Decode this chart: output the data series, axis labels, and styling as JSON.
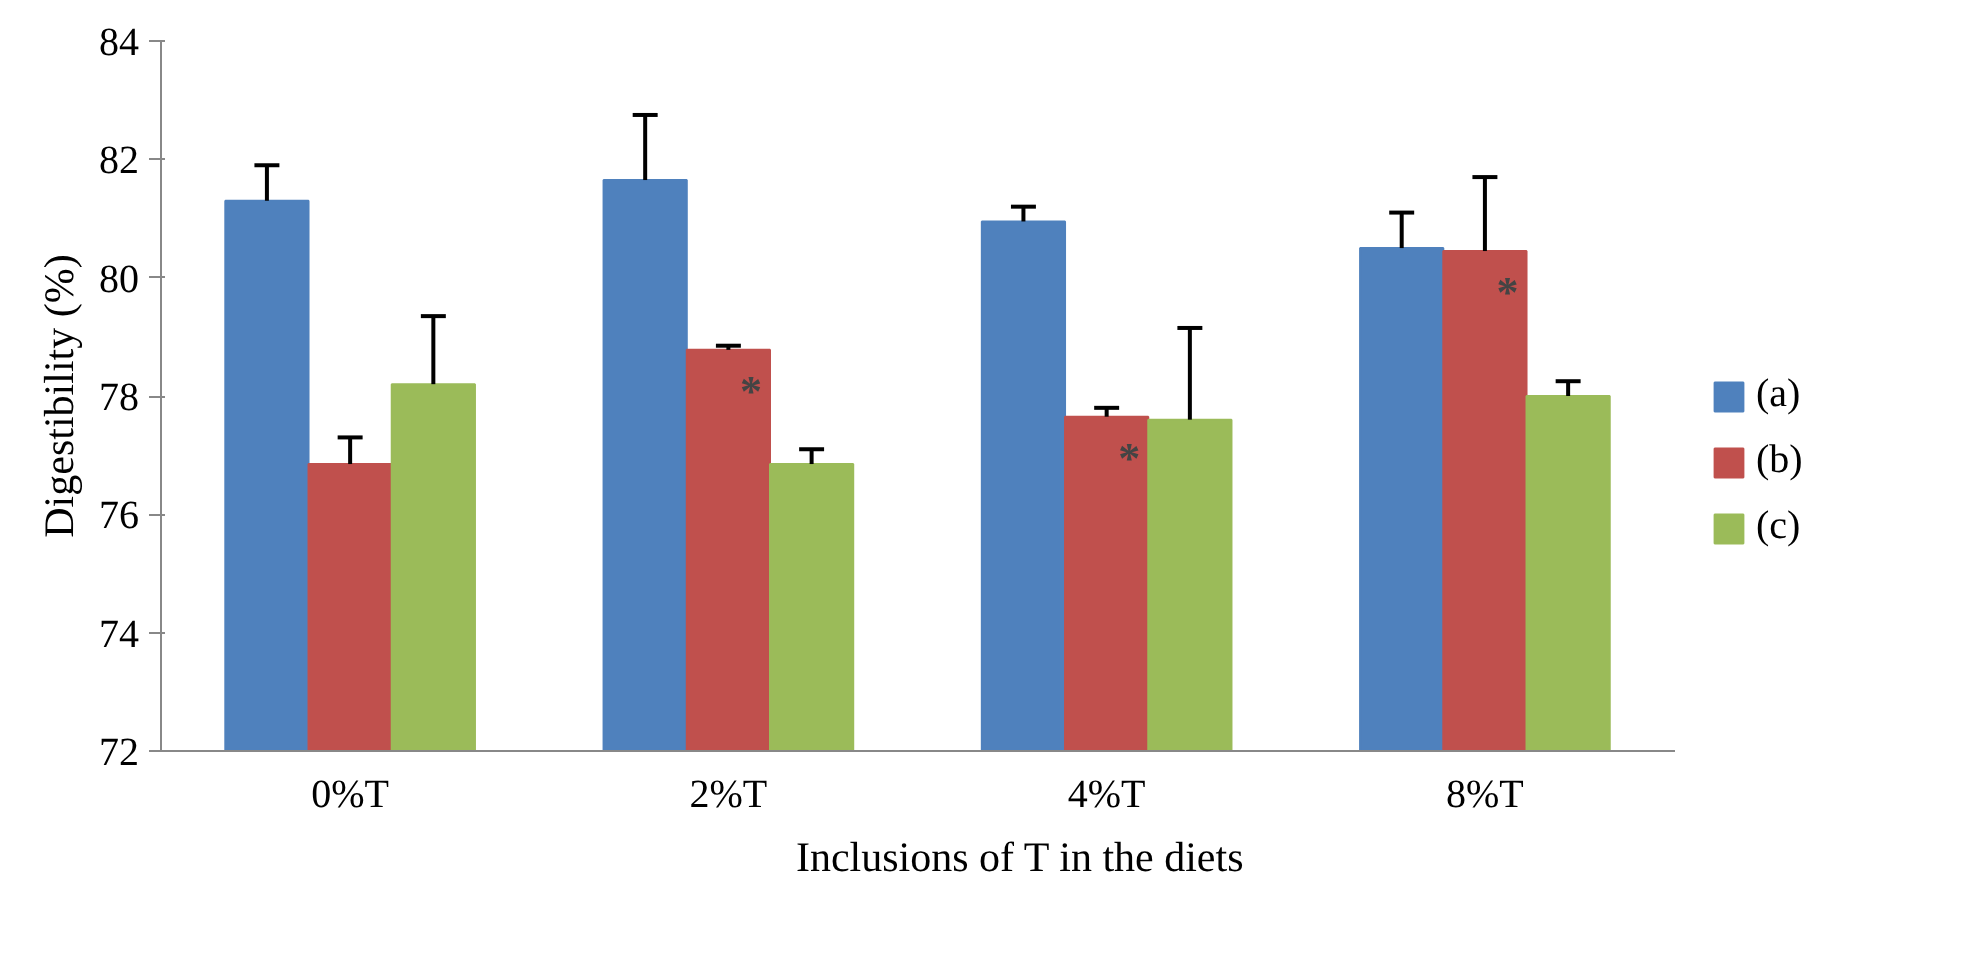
{
  "chart_data": {
    "type": "bar",
    "xlabel": "Inclusions  of  T in the diets",
    "ylabel": "Digestibility (%)",
    "categories": [
      "0%T",
      "2%T",
      "4%T",
      "8%T"
    ],
    "series": [
      {
        "name": "(a)",
        "color": "#4f81bd",
        "values": [
          81.3,
          81.65,
          80.95,
          80.5
        ],
        "errors": [
          [
            81.3,
            81.9
          ],
          [
            81.65,
            82.75
          ],
          [
            80.95,
            81.2
          ],
          [
            80.5,
            81.1
          ]
        ]
      },
      {
        "name": "(b)",
        "color": "#c0504d",
        "values": [
          76.85,
          78.78,
          77.65,
          80.45
        ],
        "errors": [
          [
            76.85,
            77.3
          ],
          [
            78.78,
            78.85
          ],
          [
            77.65,
            77.8
          ],
          [
            80.45,
            81.7
          ]
        ]
      },
      {
        "name": "(c)",
        "color": "#9bbb59",
        "values": [
          78.2,
          76.85,
          77.6,
          78.0
        ],
        "errors": [
          [
            78.2,
            79.35
          ],
          [
            76.85,
            77.1
          ],
          [
            77.6,
            79.15
          ],
          [
            78.0,
            78.25
          ]
        ]
      }
    ],
    "annotations": [
      {
        "text": "*",
        "x": "2%T",
        "y": 78.78
      },
      {
        "text": "*",
        "x": "4%T",
        "y": 77.65
      },
      {
        "text": "*",
        "x": "8%T",
        "y": 80.45
      }
    ],
    "ylim": [
      72,
      84
    ],
    "yticks": [
      72,
      74,
      76,
      78,
      80,
      82,
      84
    ],
    "grid": false,
    "legend": "right"
  }
}
